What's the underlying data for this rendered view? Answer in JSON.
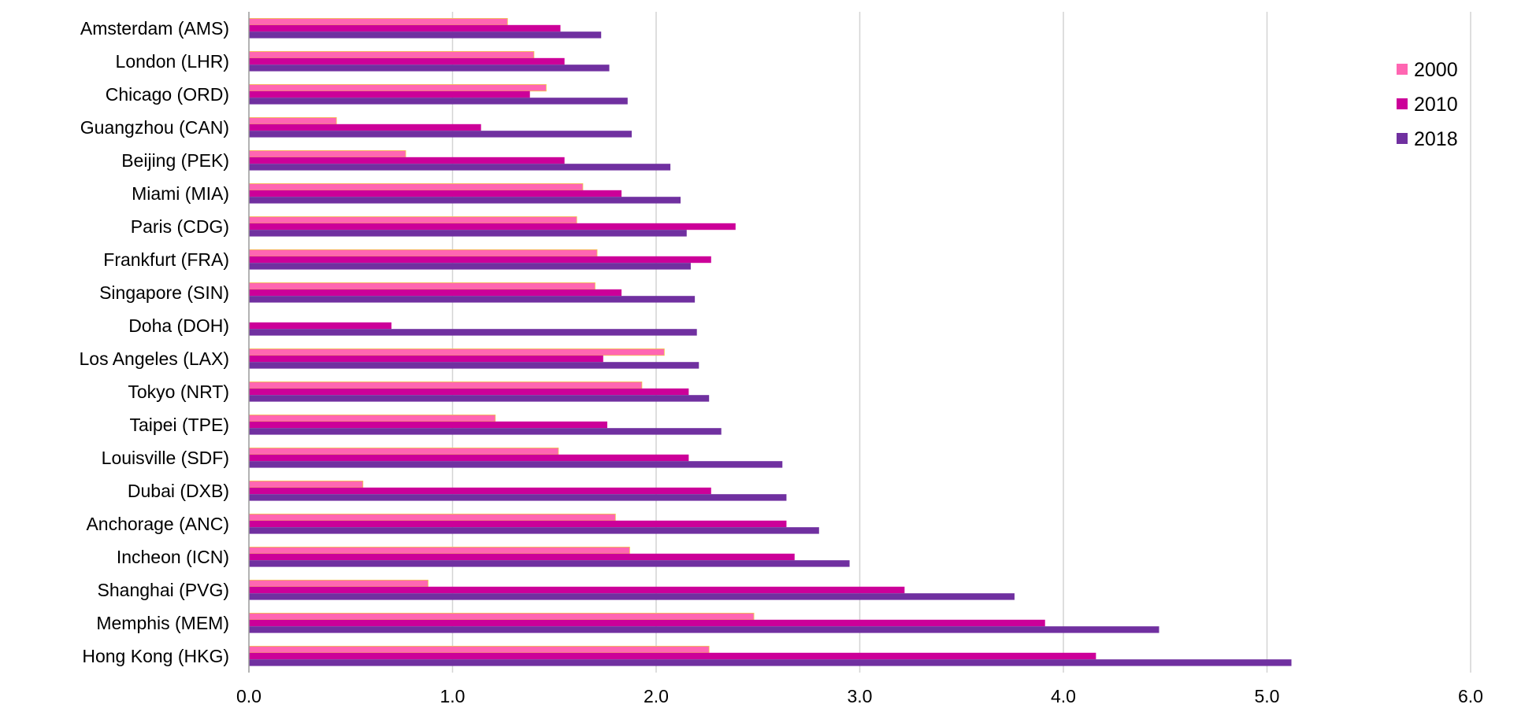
{
  "chart_data": {
    "type": "bar",
    "orientation": "horizontal",
    "title": "",
    "xlabel": "",
    "ylabel": "",
    "xlim": [
      0,
      6
    ],
    "x_ticks": [
      "0.0",
      "1.0",
      "2.0",
      "3.0",
      "4.0",
      "5.0",
      "6.0"
    ],
    "grid": "vertical",
    "legend_position": "top-right",
    "categories": [
      "Amsterdam (AMS)",
      "London (LHR)",
      "Chicago (ORD)",
      "Guangzhou (CAN)",
      "Beijing (PEK)",
      "Miami (MIA)",
      "Paris (CDG)",
      "Frankfurt (FRA)",
      "Singapore (SIN)",
      "Doha (DOH)",
      "Los Angeles (LAX)",
      "Tokyo (NRT)",
      "Taipei (TPE)",
      "Louisville (SDF)",
      "Dubai (DXB)",
      "Anchorage (ANC)",
      "Incheon (ICN)",
      "Shanghai (PVG)",
      "Memphis (MEM)",
      "Hong Kong (HKG)"
    ],
    "series": [
      {
        "name": "2000",
        "color": "#ff66b2",
        "values": [
          1.27,
          1.4,
          1.46,
          0.43,
          0.77,
          1.64,
          1.61,
          1.71,
          1.7,
          0.0,
          2.04,
          1.93,
          1.21,
          1.52,
          0.56,
          1.8,
          1.87,
          0.88,
          2.48,
          2.26
        ]
      },
      {
        "name": "2010",
        "color": "#cc0099",
        "values": [
          1.53,
          1.55,
          1.38,
          1.14,
          1.55,
          1.83,
          2.39,
          2.27,
          1.83,
          0.7,
          1.74,
          2.16,
          1.76,
          2.16,
          2.27,
          2.64,
          2.68,
          3.22,
          3.91,
          4.16
        ]
      },
      {
        "name": "2018",
        "color": "#7030a0",
        "values": [
          1.73,
          1.77,
          1.86,
          1.88,
          2.07,
          2.12,
          2.15,
          2.17,
          2.19,
          2.2,
          2.21,
          2.26,
          2.32,
          2.62,
          2.64,
          2.8,
          2.95,
          3.76,
          4.47,
          5.12
        ]
      }
    ]
  }
}
